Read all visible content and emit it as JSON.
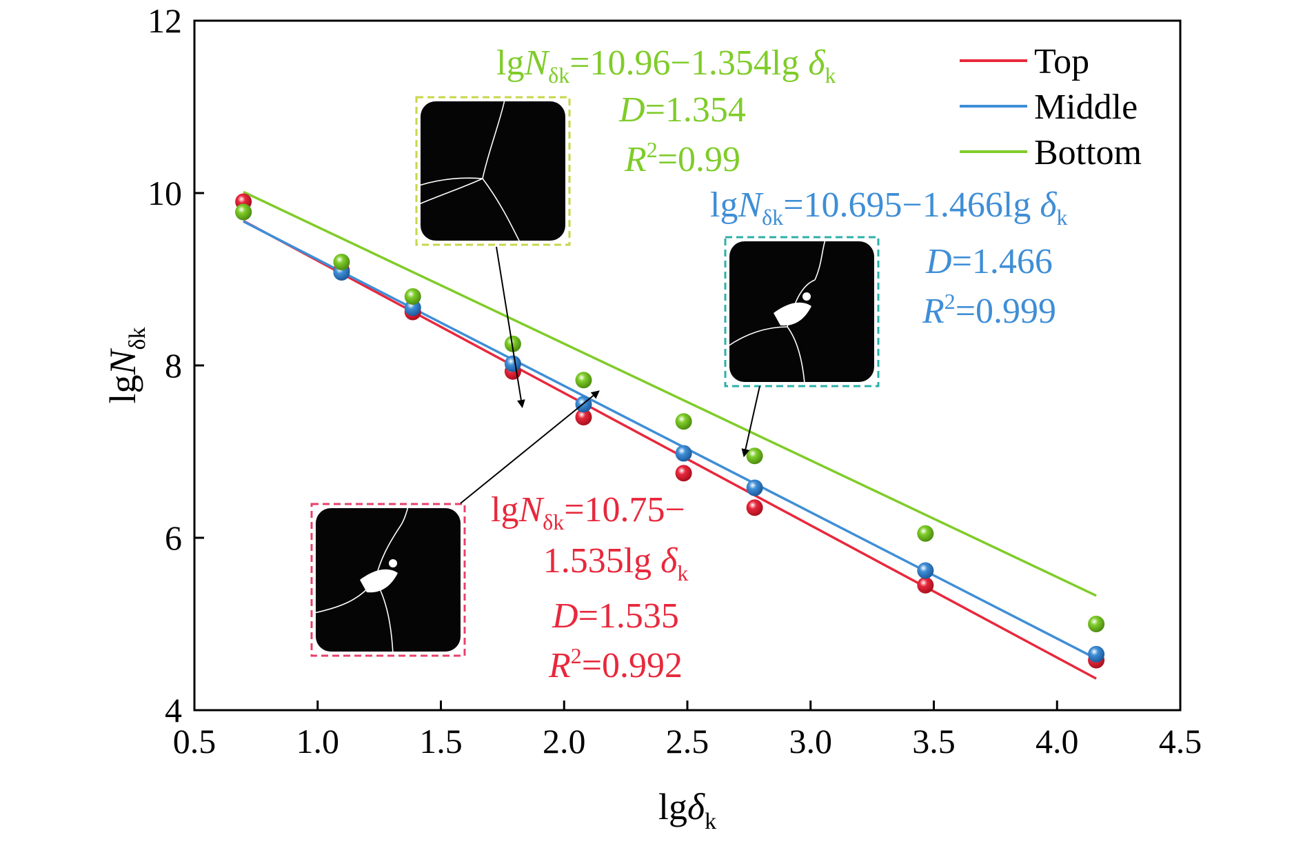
{
  "chart_data": {
    "type": "scatter",
    "xlabel": {
      "base": "lgδ",
      "sub": "k"
    },
    "ylabel": {
      "base": "lgN",
      "sub": "δk"
    },
    "xlim": [
      0.5,
      4.5
    ],
    "ylim": [
      4,
      12
    ],
    "xticks": [
      {
        "v": 0.5,
        "label": "0.5"
      },
      {
        "v": 1.0,
        "label": "1.0"
      },
      {
        "v": 1.5,
        "label": "1.5"
      },
      {
        "v": 2.0,
        "label": "2.0"
      },
      {
        "v": 2.5,
        "label": "2.5"
      },
      {
        "v": 3.0,
        "label": "3.0"
      },
      {
        "v": 3.5,
        "label": "3.5"
      },
      {
        "v": 4.0,
        "label": "4.0"
      },
      {
        "v": 4.5,
        "label": "4.5"
      }
    ],
    "yticks": [
      {
        "v": 4,
        "label": "4"
      },
      {
        "v": 6,
        "label": "6"
      },
      {
        "v": 8,
        "label": "8"
      },
      {
        "v": 10,
        "label": "10"
      },
      {
        "v": 12,
        "label": "12"
      }
    ],
    "x": [
      0.699,
      1.097,
      1.386,
      1.792,
      2.079,
      2.485,
      2.773,
      3.466,
      4.159
    ],
    "legend_position": "top-right",
    "series": [
      {
        "name": "Top",
        "color": "#e8283c",
        "key": "top",
        "values": [
          9.9,
          9.1,
          8.62,
          7.93,
          7.4,
          6.75,
          6.35,
          5.45,
          4.58
        ],
        "fit": {
          "intercept": 10.75,
          "slope": -1.535
        },
        "equation": {
          "pre": "lgN",
          "sub1": "δk",
          "mid": "=10.75−",
          "line2": "1.535lg δ",
          "sub2": "k"
        },
        "D": "=1.535",
        "R2": "=0.992"
      },
      {
        "name": "Middle",
        "color": "#3f8ed6",
        "key": "middle",
        "values": [
          9.78,
          9.08,
          8.67,
          8.02,
          7.55,
          6.98,
          6.58,
          5.62,
          4.65
        ],
        "fit": {
          "intercept": 10.695,
          "slope": -1.466
        },
        "equation": {
          "pre": "lgN",
          "sub1": "δk",
          "mid": "=10.695−1.466lg δ",
          "sub2": "k"
        },
        "D": "=1.466",
        "R2": "=0.999"
      },
      {
        "name": "Bottom",
        "color": "#7fcc29",
        "key": "bottom",
        "values": [
          9.78,
          9.2,
          8.8,
          8.25,
          7.83,
          7.35,
          6.95,
          6.05,
          5.0
        ],
        "fit": {
          "intercept": 10.96,
          "slope": -1.354
        },
        "equation": {
          "pre": "lgN",
          "sub1": "δk",
          "mid": "=10.96−1.354lg δ",
          "sub2": "k"
        },
        "D": "=1.354",
        "R2": "=0.99"
      }
    ],
    "annotation_symbols": {
      "D": "D",
      "R": "R",
      "sq": "2"
    },
    "insets": [
      {
        "key": "bottom",
        "border_color": "#c8d64a",
        "arrow_to": [
          1.83,
          7.52
        ]
      },
      {
        "key": "middle",
        "border_color": "#2bb0a8",
        "arrow_to": [
          2.73,
          6.95
        ]
      },
      {
        "key": "top",
        "border_color": "#e8406a",
        "arrow_to": [
          2.14,
          7.7
        ]
      }
    ]
  }
}
